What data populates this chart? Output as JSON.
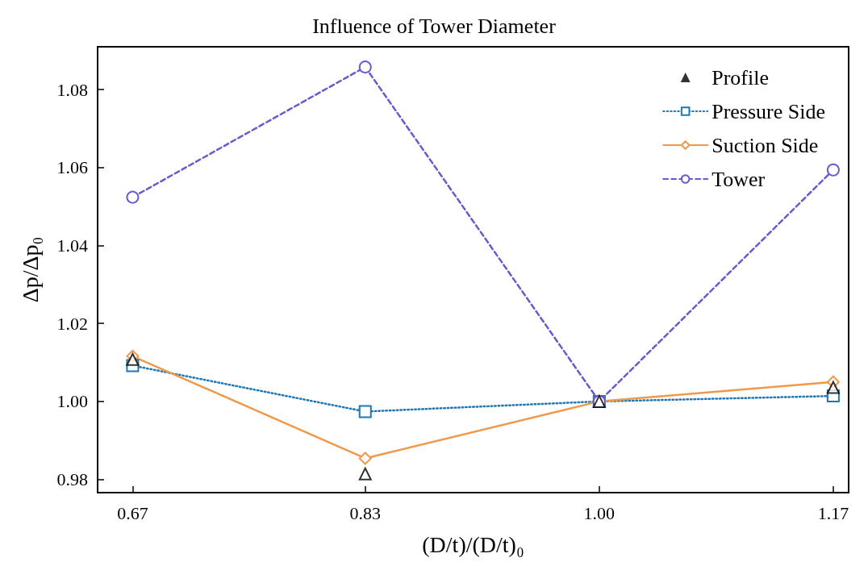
{
  "chart_data": {
    "type": "line",
    "title": "Influence of Tower Diameter",
    "xlabel": "(D/t)/(D/t)₀",
    "ylabel": "Δp/Δp₀",
    "x": [
      0.667,
      0.833,
      1.0,
      1.167
    ],
    "xlim": [
      0.642,
      1.178
    ],
    "xticks": [
      {
        "value": 0.667,
        "label": "0.67"
      },
      {
        "value": 0.833,
        "label": "0.83"
      },
      {
        "value": 1.0,
        "label": "1.00"
      },
      {
        "value": 1.167,
        "label": "1.17"
      }
    ],
    "ylim": [
      0.9766,
      1.091
    ],
    "yticks": [
      {
        "value": 0.98,
        "label": "0.98"
      },
      {
        "value": 1.0,
        "label": "1.00"
      },
      {
        "value": 1.02,
        "label": "1.02"
      },
      {
        "value": 1.04,
        "label": "1.04"
      },
      {
        "value": 1.06,
        "label": "1.06"
      },
      {
        "value": 1.08,
        "label": "1.08"
      }
    ],
    "grid": false,
    "legend": "top right",
    "series": [
      {
        "name": "Profile",
        "type": "scatter",
        "color": "#000000",
        "marker": "triangle",
        "values": [
          1.0108,
          0.9814,
          1.0,
          1.0036
        ]
      },
      {
        "name": "Pressure Side",
        "color": "#1f77b4",
        "marker": "square",
        "line_style": "dotted",
        "values": [
          1.0092,
          0.9974,
          1.0,
          1.0014
        ]
      },
      {
        "name": "Suction Side",
        "color": "#f0994a",
        "marker": "diamond",
        "line_style": "solid",
        "values": [
          1.0116,
          0.9854,
          1.0,
          1.005
        ]
      },
      {
        "name": "Tower",
        "color": "#6a5acd",
        "marker": "circle",
        "line_style": "dashed",
        "values": [
          1.0524,
          1.0858,
          1.0,
          1.0594
        ]
      }
    ]
  }
}
